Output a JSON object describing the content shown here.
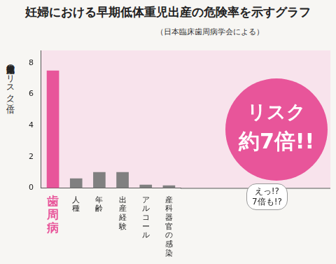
{
  "chart_data": {
    "type": "bar",
    "title": "妊婦における早期低体重児出産の危険率を示すグラフ",
    "subtitle": "（日本臨床歯周病学会による）",
    "y_label": "早期低体重児出産のリスク（倍）",
    "categories": [
      "歯周病",
      "人種",
      "年齢",
      "出産経験",
      "アルコール",
      "産科器官の感染"
    ],
    "values": [
      7.5,
      0.6,
      1.0,
      1.0,
      0.2,
      0.15
    ],
    "colors": [
      "#e8559a",
      "#808080",
      "#808080",
      "#808080",
      "#808080",
      "#808080"
    ],
    "ylim": [
      0,
      8.8
    ],
    "yticks": [
      0,
      2,
      4,
      6,
      8
    ],
    "grid": false,
    "annotations": [
      "リスク",
      "約7倍!!",
      "えっ!?",
      "7倍も!?"
    ]
  }
}
